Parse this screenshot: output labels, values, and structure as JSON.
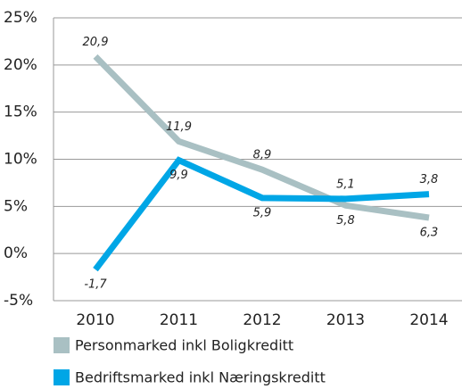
{
  "chart_data": {
    "type": "line",
    "categories": [
      "2010",
      "2011",
      "2012",
      "2013",
      "2014"
    ],
    "series": [
      {
        "name": "Personmarked inkl Boligkreditt",
        "color": "#a9c0c3",
        "values": [
          20.9,
          11.9,
          8.9,
          5.1,
          3.8
        ],
        "value_labels": [
          "20,9",
          "11,9",
          "8,9",
          "5,1",
          "3,8"
        ]
      },
      {
        "name": "Bedriftsmarked inkl Næringskreditt",
        "color": "#00a6e6",
        "values": [
          -1.7,
          9.9,
          5.9,
          5.8,
          6.3
        ],
        "value_labels": [
          "-1,7",
          "9,9",
          "5,9",
          "5,8",
          "6,3"
        ]
      }
    ],
    "ylim": [
      -5,
      25
    ],
    "yticks": [
      {
        "value": -5,
        "label": "-5%"
      },
      {
        "value": 0,
        "label": "0%"
      },
      {
        "value": 5,
        "label": "5%"
      },
      {
        "value": 10,
        "label": "10%"
      },
      {
        "value": 15,
        "label": "15%"
      },
      {
        "value": 20,
        "label": "20%"
      },
      {
        "value": 25,
        "label": "25%"
      }
    ],
    "grid": true,
    "legend": "bottom"
  }
}
